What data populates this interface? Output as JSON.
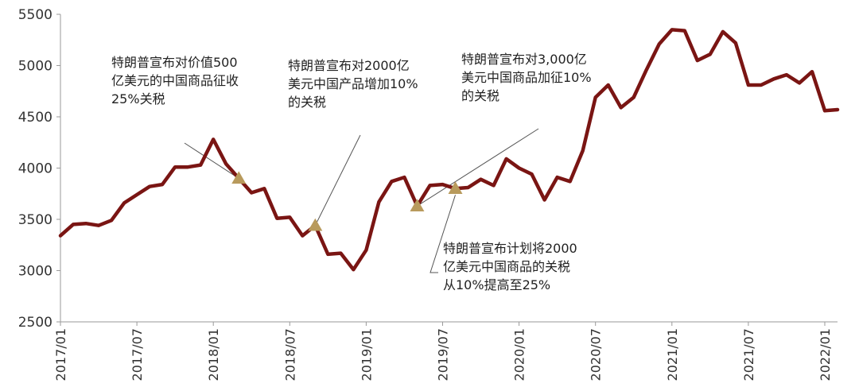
{
  "chart_data": {
    "type": "line",
    "title": "",
    "xlabel": "",
    "ylabel": "",
    "ylim": [
      2500,
      5500
    ],
    "yticks": [
      2500,
      3000,
      3500,
      4000,
      4500,
      5000,
      5500
    ],
    "xtick_labels": [
      "2017/01",
      "2017/07",
      "2018/01",
      "2018/07",
      "2019/01",
      "2019/07",
      "2020/01",
      "2020/07",
      "2021/01",
      "2021/07",
      "2022/01"
    ],
    "grid": false,
    "line_color": "#7a1513",
    "marker_color": "#b89a5c",
    "series": [
      {
        "x": [
          "2017/01",
          "2017/02",
          "2017/03",
          "2017/04",
          "2017/05",
          "2017/06",
          "2017/07",
          "2017/08",
          "2017/09",
          "2017/10",
          "2017/11",
          "2017/12",
          "2018/01",
          "2018/02",
          "2018/03",
          "2018/04",
          "2018/05",
          "2018/06",
          "2018/07",
          "2018/08",
          "2018/09",
          "2018/10",
          "2018/11",
          "2018/12",
          "2019/01",
          "2019/02",
          "2019/03",
          "2019/04",
          "2019/05",
          "2019/06",
          "2019/07",
          "2019/08",
          "2019/09",
          "2019/10",
          "2019/11",
          "2019/12",
          "2020/01",
          "2020/02",
          "2020/03",
          "2020/04",
          "2020/05",
          "2020/06",
          "2020/07",
          "2020/08",
          "2020/09",
          "2020/10",
          "2020/11",
          "2020/12",
          "2021/01",
          "2021/02",
          "2021/03",
          "2021/04",
          "2021/05",
          "2021/06",
          "2021/07",
          "2021/08",
          "2021/09",
          "2021/10",
          "2021/11",
          "2021/12",
          "2022/01",
          "2022/02"
        ],
        "values": [
          3340,
          3450,
          3460,
          3440,
          3490,
          3660,
          3740,
          3820,
          3840,
          4010,
          4010,
          4030,
          4280,
          4040,
          3900,
          3760,
          3800,
          3510,
          3520,
          3340,
          3440,
          3160,
          3170,
          3010,
          3200,
          3670,
          3870,
          3910,
          3630,
          3830,
          3840,
          3800,
          3810,
          3890,
          3830,
          4090,
          4000,
          3940,
          3690,
          3910,
          3870,
          4170,
          4690,
          4810,
          4590,
          4690,
          4960,
          5210,
          5350,
          5340,
          5050,
          5110,
          5330,
          5220,
          4810,
          4810,
          4870,
          4910,
          4830,
          4940,
          4560,
          4570
        ]
      }
    ],
    "markers": [
      {
        "x": "2018/03",
        "y": 3900
      },
      {
        "x": "2018/09",
        "y": 3440
      },
      {
        "x": "2019/05",
        "y": 3630
      },
      {
        "x": "2019/08",
        "y": 3800
      }
    ],
    "annotations": [
      {
        "lines": [
          "特朗普宣布对价值500",
          "亿美元的中国商品征收",
          "25%关税"
        ]
      },
      {
        "lines": [
          "特朗普宣布对2000亿",
          "美元中国产品增加10%",
          "的关税"
        ]
      },
      {
        "lines": [
          "特朗普宣布对3,000亿",
          "美元中国商品加征10%",
          "的关税"
        ]
      },
      {
        "lines": [
          "特朗普宣布计划将2000",
          "亿美元中国商品的关税",
          "从10%提高至25%"
        ]
      }
    ]
  }
}
